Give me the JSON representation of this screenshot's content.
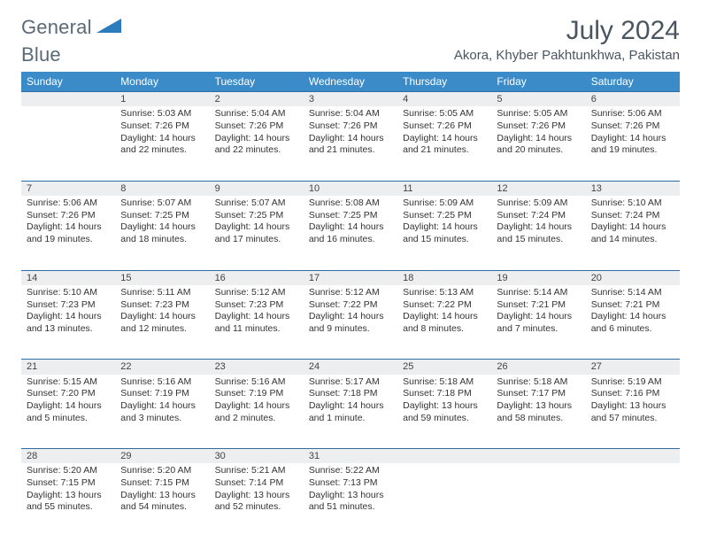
{
  "brand": {
    "name": "General",
    "accent": "Blue"
  },
  "title": "July 2024",
  "location": "Akora, Khyber Pakhtunkhwa, Pakistan",
  "colors": {
    "header_bg": "#3b8bc8",
    "header_text": "#ffffff",
    "row_divider": "#2d6ea7",
    "daynum_bg": "#eceeef",
    "text": "#333333",
    "title_text": "#4a5560",
    "logo_text": "#5a6a78",
    "logo_accent": "#2b7bbd"
  },
  "weekdays": [
    "Sunday",
    "Monday",
    "Tuesday",
    "Wednesday",
    "Thursday",
    "Friday",
    "Saturday"
  ],
  "weeks": [
    {
      "nums": [
        "",
        "1",
        "2",
        "3",
        "4",
        "5",
        "6"
      ],
      "cells": [
        null,
        {
          "sunrise": "Sunrise: 5:03 AM",
          "sunset": "Sunset: 7:26 PM",
          "day1": "Daylight: 14 hours",
          "day2": "and 22 minutes."
        },
        {
          "sunrise": "Sunrise: 5:04 AM",
          "sunset": "Sunset: 7:26 PM",
          "day1": "Daylight: 14 hours",
          "day2": "and 22 minutes."
        },
        {
          "sunrise": "Sunrise: 5:04 AM",
          "sunset": "Sunset: 7:26 PM",
          "day1": "Daylight: 14 hours",
          "day2": "and 21 minutes."
        },
        {
          "sunrise": "Sunrise: 5:05 AM",
          "sunset": "Sunset: 7:26 PM",
          "day1": "Daylight: 14 hours",
          "day2": "and 21 minutes."
        },
        {
          "sunrise": "Sunrise: 5:05 AM",
          "sunset": "Sunset: 7:26 PM",
          "day1": "Daylight: 14 hours",
          "day2": "and 20 minutes."
        },
        {
          "sunrise": "Sunrise: 5:06 AM",
          "sunset": "Sunset: 7:26 PM",
          "day1": "Daylight: 14 hours",
          "day2": "and 19 minutes."
        }
      ]
    },
    {
      "nums": [
        "7",
        "8",
        "9",
        "10",
        "11",
        "12",
        "13"
      ],
      "cells": [
        {
          "sunrise": "Sunrise: 5:06 AM",
          "sunset": "Sunset: 7:26 PM",
          "day1": "Daylight: 14 hours",
          "day2": "and 19 minutes."
        },
        {
          "sunrise": "Sunrise: 5:07 AM",
          "sunset": "Sunset: 7:25 PM",
          "day1": "Daylight: 14 hours",
          "day2": "and 18 minutes."
        },
        {
          "sunrise": "Sunrise: 5:07 AM",
          "sunset": "Sunset: 7:25 PM",
          "day1": "Daylight: 14 hours",
          "day2": "and 17 minutes."
        },
        {
          "sunrise": "Sunrise: 5:08 AM",
          "sunset": "Sunset: 7:25 PM",
          "day1": "Daylight: 14 hours",
          "day2": "and 16 minutes."
        },
        {
          "sunrise": "Sunrise: 5:09 AM",
          "sunset": "Sunset: 7:25 PM",
          "day1": "Daylight: 14 hours",
          "day2": "and 15 minutes."
        },
        {
          "sunrise": "Sunrise: 5:09 AM",
          "sunset": "Sunset: 7:24 PM",
          "day1": "Daylight: 14 hours",
          "day2": "and 15 minutes."
        },
        {
          "sunrise": "Sunrise: 5:10 AM",
          "sunset": "Sunset: 7:24 PM",
          "day1": "Daylight: 14 hours",
          "day2": "and 14 minutes."
        }
      ]
    },
    {
      "nums": [
        "14",
        "15",
        "16",
        "17",
        "18",
        "19",
        "20"
      ],
      "cells": [
        {
          "sunrise": "Sunrise: 5:10 AM",
          "sunset": "Sunset: 7:23 PM",
          "day1": "Daylight: 14 hours",
          "day2": "and 13 minutes."
        },
        {
          "sunrise": "Sunrise: 5:11 AM",
          "sunset": "Sunset: 7:23 PM",
          "day1": "Daylight: 14 hours",
          "day2": "and 12 minutes."
        },
        {
          "sunrise": "Sunrise: 5:12 AM",
          "sunset": "Sunset: 7:23 PM",
          "day1": "Daylight: 14 hours",
          "day2": "and 11 minutes."
        },
        {
          "sunrise": "Sunrise: 5:12 AM",
          "sunset": "Sunset: 7:22 PM",
          "day1": "Daylight: 14 hours",
          "day2": "and 9 minutes."
        },
        {
          "sunrise": "Sunrise: 5:13 AM",
          "sunset": "Sunset: 7:22 PM",
          "day1": "Daylight: 14 hours",
          "day2": "and 8 minutes."
        },
        {
          "sunrise": "Sunrise: 5:14 AM",
          "sunset": "Sunset: 7:21 PM",
          "day1": "Daylight: 14 hours",
          "day2": "and 7 minutes."
        },
        {
          "sunrise": "Sunrise: 5:14 AM",
          "sunset": "Sunset: 7:21 PM",
          "day1": "Daylight: 14 hours",
          "day2": "and 6 minutes."
        }
      ]
    },
    {
      "nums": [
        "21",
        "22",
        "23",
        "24",
        "25",
        "26",
        "27"
      ],
      "cells": [
        {
          "sunrise": "Sunrise: 5:15 AM",
          "sunset": "Sunset: 7:20 PM",
          "day1": "Daylight: 14 hours",
          "day2": "and 5 minutes."
        },
        {
          "sunrise": "Sunrise: 5:16 AM",
          "sunset": "Sunset: 7:19 PM",
          "day1": "Daylight: 14 hours",
          "day2": "and 3 minutes."
        },
        {
          "sunrise": "Sunrise: 5:16 AM",
          "sunset": "Sunset: 7:19 PM",
          "day1": "Daylight: 14 hours",
          "day2": "and 2 minutes."
        },
        {
          "sunrise": "Sunrise: 5:17 AM",
          "sunset": "Sunset: 7:18 PM",
          "day1": "Daylight: 14 hours",
          "day2": "and 1 minute."
        },
        {
          "sunrise": "Sunrise: 5:18 AM",
          "sunset": "Sunset: 7:18 PM",
          "day1": "Daylight: 13 hours",
          "day2": "and 59 minutes."
        },
        {
          "sunrise": "Sunrise: 5:18 AM",
          "sunset": "Sunset: 7:17 PM",
          "day1": "Daylight: 13 hours",
          "day2": "and 58 minutes."
        },
        {
          "sunrise": "Sunrise: 5:19 AM",
          "sunset": "Sunset: 7:16 PM",
          "day1": "Daylight: 13 hours",
          "day2": "and 57 minutes."
        }
      ]
    },
    {
      "nums": [
        "28",
        "29",
        "30",
        "31",
        "",
        "",
        ""
      ],
      "cells": [
        {
          "sunrise": "Sunrise: 5:20 AM",
          "sunset": "Sunset: 7:15 PM",
          "day1": "Daylight: 13 hours",
          "day2": "and 55 minutes."
        },
        {
          "sunrise": "Sunrise: 5:20 AM",
          "sunset": "Sunset: 7:15 PM",
          "day1": "Daylight: 13 hours",
          "day2": "and 54 minutes."
        },
        {
          "sunrise": "Sunrise: 5:21 AM",
          "sunset": "Sunset: 7:14 PM",
          "day1": "Daylight: 13 hours",
          "day2": "and 52 minutes."
        },
        {
          "sunrise": "Sunrise: 5:22 AM",
          "sunset": "Sunset: 7:13 PM",
          "day1": "Daylight: 13 hours",
          "day2": "and 51 minutes."
        },
        null,
        null,
        null
      ]
    }
  ]
}
